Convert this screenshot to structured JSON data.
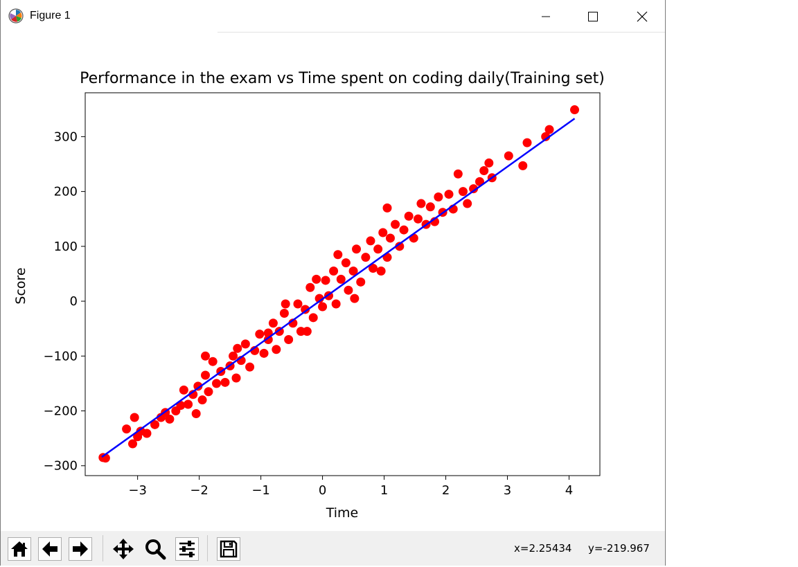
{
  "window": {
    "title": "Figure 1",
    "icon": "matplotlib-icon"
  },
  "toolbar": {
    "buttons": [
      {
        "name": "home-button",
        "icon": "home-icon"
      },
      {
        "name": "back-button",
        "icon": "arrow-left-icon"
      },
      {
        "name": "forward-button",
        "icon": "arrow-right-icon"
      },
      {
        "name": "pan-button",
        "icon": "move-icon"
      },
      {
        "name": "zoom-button",
        "icon": "magnifier-icon"
      },
      {
        "name": "configure-subplots-button",
        "icon": "sliders-icon"
      },
      {
        "name": "save-button",
        "icon": "floppy-icon"
      }
    ],
    "coord_x": "x=2.25434",
    "coord_y": "y=-219.967"
  },
  "colors": {
    "scatter": "#ff0000",
    "line": "#0000ff"
  },
  "chart_data": {
    "type": "scatter",
    "title": "Performance in the exam vs Time spent on coding daily(Training set)",
    "xlabel": "Time",
    "ylabel": "Score",
    "xlim": [
      -3.85,
      4.5
    ],
    "ylim": [
      -318,
      380
    ],
    "xticks": [
      -3,
      -2,
      -1,
      0,
      1,
      2,
      3,
      4
    ],
    "yticks": [
      -300,
      -200,
      -100,
      0,
      100,
      200,
      300
    ],
    "xtick_labels": [
      "−3",
      "−2",
      "−1",
      "0",
      "1",
      "2",
      "3",
      "4"
    ],
    "ytick_labels": [
      "−300",
      "−200",
      "−100",
      "0",
      "100",
      "200",
      "300"
    ],
    "grid": false,
    "series": [
      {
        "type": "scatter",
        "color": "#ff0000",
        "points": [
          [
            -3.56,
            -285
          ],
          [
            -3.52,
            -286
          ],
          [
            -3.18,
            -233
          ],
          [
            -3.05,
            -212
          ],
          [
            -3.08,
            -260
          ],
          [
            -3.0,
            -247
          ],
          [
            -2.95,
            -237
          ],
          [
            -2.85,
            -241
          ],
          [
            -2.72,
            -225
          ],
          [
            -2.62,
            -212
          ],
          [
            -2.55,
            -203
          ],
          [
            -2.48,
            -215
          ],
          [
            -2.38,
            -200
          ],
          [
            -2.3,
            -190
          ],
          [
            -2.25,
            -162
          ],
          [
            -2.18,
            -188
          ],
          [
            -2.1,
            -170
          ],
          [
            -2.02,
            -155
          ],
          [
            -1.95,
            -180
          ],
          [
            -1.9,
            -135
          ],
          [
            -1.85,
            -165
          ],
          [
            -1.78,
            -110
          ],
          [
            -1.72,
            -150
          ],
          [
            -1.65,
            -128
          ],
          [
            -1.58,
            -148
          ],
          [
            -1.5,
            -118
          ],
          [
            -1.45,
            -100
          ],
          [
            -1.4,
            -140
          ],
          [
            -1.32,
            -108
          ],
          [
            -1.25,
            -78
          ],
          [
            -1.18,
            -120
          ],
          [
            -1.1,
            -90
          ],
          [
            -1.02,
            -60
          ],
          [
            -0.95,
            -95
          ],
          [
            -0.88,
            -70
          ],
          [
            -0.8,
            -40
          ],
          [
            -0.75,
            -88
          ],
          [
            -0.7,
            -55
          ],
          [
            -0.62,
            -22
          ],
          [
            -0.55,
            -70
          ],
          [
            -0.48,
            -40
          ],
          [
            -0.4,
            -5
          ],
          [
            -0.35,
            -55
          ],
          [
            -0.28,
            -15
          ],
          [
            -0.2,
            25
          ],
          [
            -0.15,
            -30
          ],
          [
            -0.1,
            40
          ],
          [
            -0.05,
            5
          ],
          [
            0.0,
            -10
          ],
          [
            0.05,
            38
          ],
          [
            0.1,
            10
          ],
          [
            0.18,
            55
          ],
          [
            0.22,
            -5
          ],
          [
            0.3,
            40
          ],
          [
            0.38,
            70
          ],
          [
            0.42,
            20
          ],
          [
            0.5,
            55
          ],
          [
            0.55,
            95
          ],
          [
            0.62,
            35
          ],
          [
            0.7,
            80
          ],
          [
            0.78,
            110
          ],
          [
            0.82,
            60
          ],
          [
            0.9,
            95
          ],
          [
            0.98,
            125
          ],
          [
            1.05,
            80
          ],
          [
            1.1,
            115
          ],
          [
            1.18,
            140
          ],
          [
            1.25,
            100
          ],
          [
            1.32,
            130
          ],
          [
            1.4,
            155
          ],
          [
            1.48,
            115
          ],
          [
            1.55,
            150
          ],
          [
            1.6,
            178
          ],
          [
            1.68,
            140
          ],
          [
            1.75,
            172
          ],
          [
            1.82,
            145
          ],
          [
            1.88,
            190
          ],
          [
            1.95,
            162
          ],
          [
            2.05,
            195
          ],
          [
            2.12,
            168
          ],
          [
            2.2,
            232
          ],
          [
            2.28,
            200
          ],
          [
            2.35,
            178
          ],
          [
            2.45,
            205
          ],
          [
            2.55,
            218
          ],
          [
            2.62,
            238
          ],
          [
            2.7,
            252
          ],
          [
            2.75,
            225
          ],
          [
            3.02,
            265
          ],
          [
            3.25,
            247
          ],
          [
            3.32,
            289
          ],
          [
            3.62,
            300
          ],
          [
            3.68,
            313
          ],
          [
            4.09,
            349
          ],
          [
            -1.38,
            -86
          ],
          [
            -0.88,
            -58
          ],
          [
            -2.05,
            -205
          ],
          [
            -0.25,
            -55
          ],
          [
            0.52,
            5
          ],
          [
            1.05,
            170
          ],
          [
            -1.9,
            -100
          ],
          [
            0.95,
            55
          ],
          [
            -0.6,
            -5
          ],
          [
            0.25,
            85
          ]
        ]
      },
      {
        "type": "line",
        "color": "#0000ff",
        "x": [
          -3.58,
          4.09
        ],
        "y": [
          -284,
          333
        ]
      }
    ]
  }
}
